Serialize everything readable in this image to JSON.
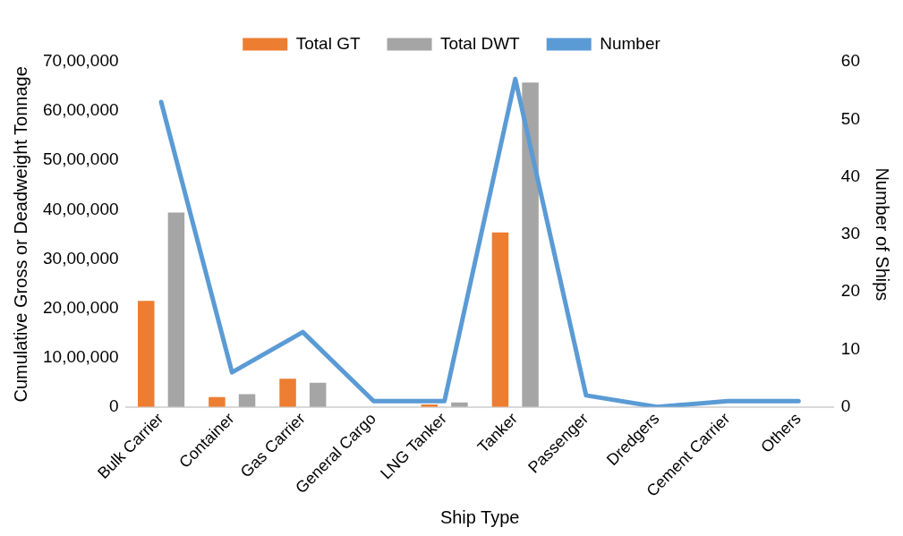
{
  "chart_data": {
    "type": "bar",
    "xlabel": "Ship Type",
    "ylabel": "Cumulative Gross or Deadweight Tonnage",
    "y2label": "Number of Ships",
    "categories": [
      "Bulk Carrier",
      "Container",
      "Gas Carrier",
      "General Cargo",
      "LNG Tanker",
      "Tanker",
      "Passenger",
      "Dredgers",
      "Cement Carrier",
      "Others"
    ],
    "series": [
      {
        "name": "Total GT",
        "color": "#ed7d31",
        "values": [
          2150000,
          200000,
          570000,
          0,
          50000,
          3540000,
          0,
          0,
          0,
          null
        ]
      },
      {
        "name": "Total DWT",
        "color": "#a5a5a5",
        "values": [
          3940000,
          260000,
          490000,
          0,
          90000,
          6580000,
          0,
          0,
          null,
          0
        ]
      },
      {
        "name": "Number",
        "type": "line",
        "axis": "y2",
        "color": "#5b9bd5",
        "values": [
          53,
          6,
          13,
          1,
          1,
          57,
          2,
          0,
          1,
          1
        ]
      }
    ],
    "ylim": [
      0,
      7000000
    ],
    "yticks": [
      0,
      {
        "value": 1000000,
        "label": "10,00,000"
      },
      {
        "value": 2000000,
        "label": "20,00,000"
      },
      {
        "value": 3000000,
        "label": "30,00,000"
      },
      {
        "value": 4000000,
        "label": "40,00,000"
      },
      {
        "value": 5000000,
        "label": "50,00,000"
      },
      {
        "value": 6000000,
        "label": "60,00,000"
      },
      {
        "value": 7000000,
        "label": "70,00,000"
      }
    ],
    "y2lim": [
      0,
      60
    ],
    "y2ticks": [
      0,
      10,
      20,
      30,
      40,
      50,
      60
    ],
    "grid": false,
    "legend": "top",
    "marker": "none",
    "line_style": "solid"
  }
}
